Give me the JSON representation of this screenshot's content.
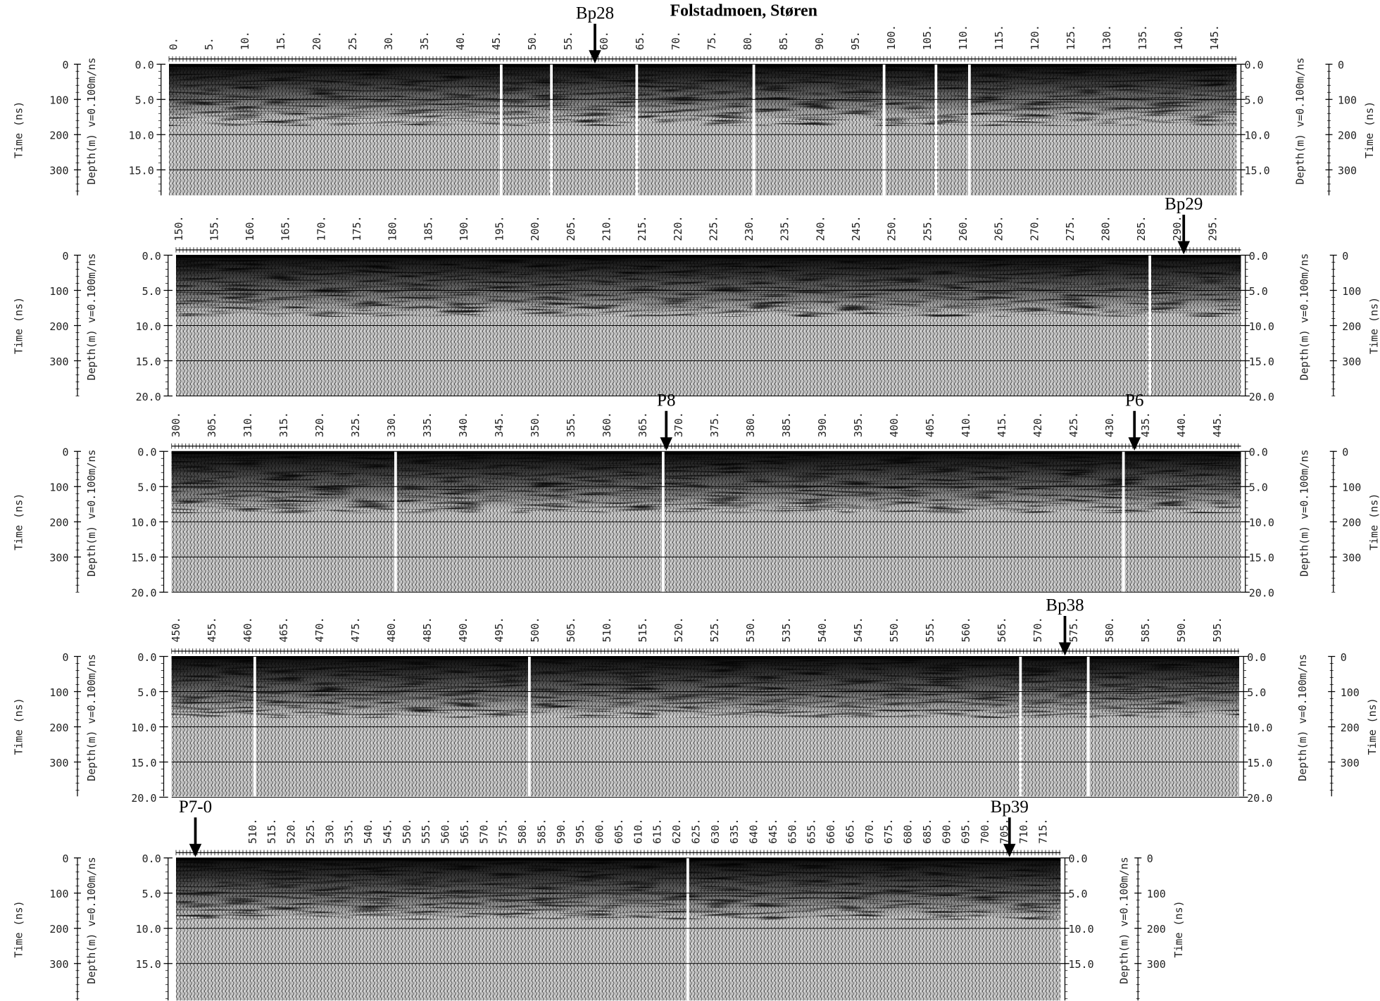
{
  "title": "Folstadmoen, Støren",
  "time_label": "Time (ns)",
  "depth_label": "Depth(m) v=0.100m/ns",
  "time_ticks": [
    "0",
    "100",
    "200",
    "300"
  ],
  "panels": [
    {
      "distance_ticks": [
        "0.",
        "5.",
        "10.",
        "15.",
        "20.",
        "25.",
        "30.",
        "35.",
        "40.",
        "45.",
        "50.",
        "55.",
        "60.",
        "65.",
        "70.",
        "75.",
        "80.",
        "85.",
        "90.",
        "95.",
        "100.",
        "105.",
        "110.",
        "115.",
        "120.",
        "125.",
        "130.",
        "135.",
        "140.",
        "145."
      ],
      "depth_ticks": [
        "0.0",
        "5.0",
        "10.0",
        "15.0"
      ],
      "markers": [
        "Bp28"
      ]
    },
    {
      "distance_ticks": [
        "150.",
        "155.",
        "160.",
        "165.",
        "170.",
        "175.",
        "180.",
        "185.",
        "190.",
        "195.",
        "200.",
        "205.",
        "210.",
        "215.",
        "220.",
        "225.",
        "230.",
        "235.",
        "240.",
        "245.",
        "250.",
        "255.",
        "260.",
        "265.",
        "270.",
        "275.",
        "280.",
        "285.",
        "290.",
        "295."
      ],
      "depth_ticks": [
        "0.0",
        "5.0",
        "10.0",
        "15.0",
        "20.0"
      ],
      "markers": [
        "Bp29"
      ]
    },
    {
      "distance_ticks": [
        "300.",
        "305.",
        "310.",
        "315.",
        "320.",
        "325.",
        "330.",
        "335.",
        "340.",
        "345.",
        "350.",
        "355.",
        "360.",
        "365.",
        "370.",
        "375.",
        "380.",
        "385.",
        "390.",
        "395.",
        "400.",
        "405.",
        "410.",
        "415.",
        "420.",
        "425.",
        "430.",
        "435.",
        "440.",
        "445."
      ],
      "depth_ticks": [
        "0.0",
        "5.0",
        "10.0",
        "15.0",
        "20.0"
      ],
      "markers": [
        "P8",
        "P6"
      ]
    },
    {
      "distance_ticks": [
        "450.",
        "455.",
        "460.",
        "465.",
        "470.",
        "475.",
        "480.",
        "485.",
        "490.",
        "495.",
        "500.",
        "505.",
        "510.",
        "515.",
        "520.",
        "525.",
        "530.",
        "535.",
        "540.",
        "545.",
        "550.",
        "555.",
        "560.",
        "565.",
        "570.",
        "575.",
        "580.",
        "585.",
        "590.",
        "595."
      ],
      "depth_ticks": [
        "0.0",
        "5.0",
        "10.0",
        "15.0",
        "20.0"
      ],
      "markers": [
        "Bp38"
      ]
    },
    {
      "distance_ticks": [
        "510.",
        "515.",
        "520.",
        "525.",
        "530.",
        "535.",
        "540.",
        "545.",
        "550.",
        "555.",
        "560.",
        "565.",
        "570.",
        "575.",
        "580.",
        "585.",
        "590.",
        "595.",
        "600.",
        "605.",
        "610.",
        "615.",
        "620.",
        "625.",
        "630.",
        "635.",
        "640.",
        "645.",
        "650.",
        "655.",
        "660.",
        "665.",
        "670.",
        "675.",
        "680.",
        "685.",
        "690.",
        "695.",
        "700.",
        "705.",
        "710.",
        "715."
      ],
      "depth_ticks": [
        "0.0",
        "5.0",
        "10.0",
        "15.0"
      ],
      "markers": [
        "P7-0",
        "Bp39"
      ]
    }
  ]
}
